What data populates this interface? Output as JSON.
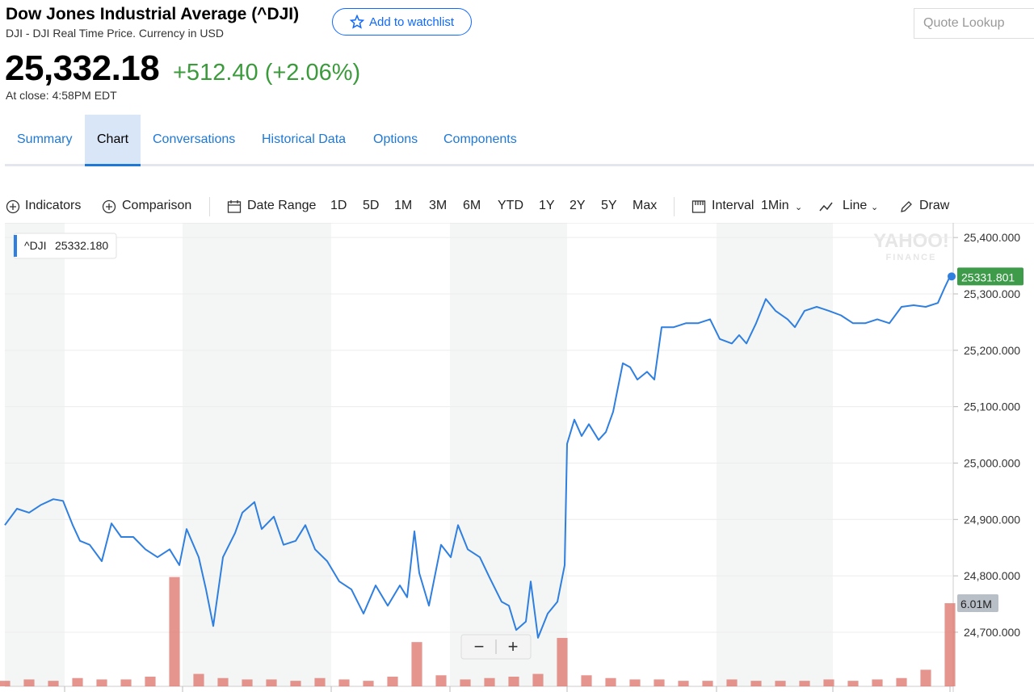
{
  "header": {
    "title": "Dow Jones Industrial Average (^DJI)",
    "subtitle": "DJI - DJI Real Time Price. Currency in USD",
    "watchlist_button": "Add to watchlist",
    "search_placeholder": "Quote Lookup",
    "price": "25,332.18",
    "change": "+512.40 (+2.06%)",
    "close_time": "At close: 4:58PM EDT"
  },
  "tabs": [
    "Summary",
    "Chart",
    "Conversations",
    "Historical Data",
    "Options",
    "Components"
  ],
  "active_tab": "Chart",
  "toolbar": {
    "indicators": "Indicators",
    "comparison": "Comparison",
    "date_range": "Date Range",
    "ranges": [
      "1D",
      "5D",
      "1M",
      "3M",
      "6M",
      "YTD",
      "1Y",
      "2Y",
      "5Y",
      "Max"
    ],
    "interval": "Interval",
    "interval_value": "1Min",
    "chart_type": "Line",
    "draw": "Draw"
  },
  "chart_data": {
    "type": "line",
    "watermark": "YAHOO!",
    "watermark_sub": "FINANCE",
    "tooltip_symbol": "^DJI",
    "tooltip_value": "25332.180",
    "end_label": "25331.801",
    "xlim": [
      0,
      390
    ],
    "ylim": [
      24604,
      25426
    ],
    "yticks": [
      {
        "value": 24700,
        "label": "24,700.000"
      },
      {
        "value": 24800,
        "label": "24,800.000"
      },
      {
        "value": 24900,
        "label": "24,900.000"
      },
      {
        "value": 25000,
        "label": "25,000.000"
      },
      {
        "value": 25100,
        "label": "25,100.000"
      },
      {
        "value": 25200,
        "label": "25,200.000"
      },
      {
        "value": 25300,
        "label": "25,300.000"
      },
      {
        "value": 25400,
        "label": "25,400.000"
      }
    ],
    "grid": true,
    "x": [
      0,
      5,
      10,
      15,
      20,
      24,
      28,
      31,
      35,
      40,
      44,
      48,
      53,
      58,
      63,
      68,
      72,
      75,
      80,
      83,
      86,
      90,
      95,
      98,
      103,
      106,
      111,
      115,
      120,
      124,
      128,
      133,
      138,
      143,
      148,
      153,
      158,
      163,
      166,
      169,
      171,
      175,
      180,
      184,
      187,
      191,
      196,
      200,
      205,
      208,
      211,
      215,
      217,
      220,
      224,
      228,
      231,
      232,
      235,
      238,
      241,
      245,
      248,
      251,
      255,
      258,
      261,
      265,
      268,
      271,
      276,
      281,
      286,
      291,
      295,
      300,
      303,
      306,
      310,
      314,
      318,
      323,
      326,
      330,
      335,
      340,
      345,
      350,
      355,
      360,
      365,
      370,
      375,
      380,
      385,
      388,
      390
    ],
    "series": [
      {
        "name": "^DJI",
        "color": "#2f7fe0",
        "values": [
          24890,
          24919,
          24912,
          24926,
          24936,
          24933,
          24890,
          24862,
          24855,
          24826,
          24893,
          24869,
          24869,
          24847,
          24833,
          24847,
          24819,
          24883,
          24833,
          24776,
          24711,
          24833,
          24876,
          24912,
          24931,
          24883,
          24905,
          24855,
          24862,
          24890,
          24847,
          24826,
          24790,
          24776,
          24733,
          24783,
          24747,
          24783,
          24762,
          24879,
          24805,
          24747,
          24855,
          24833,
          24890,
          24847,
          24833,
          24797,
          24754,
          24747,
          24704,
          24719,
          24790,
          24690,
          24733,
          24754,
          24819,
          25034,
          25077,
          25048,
          25069,
          25041,
          25055,
          25091,
          25177,
          25170,
          25148,
          25162,
          25148,
          25241,
          25241,
          25248,
          25248,
          25255,
          25220,
          25212,
          25227,
          25212,
          25248,
          25291,
          25270,
          25255,
          25241,
          25270,
          25277,
          25270,
          25262,
          25248,
          25248,
          25255,
          25248,
          25277,
          25280,
          25277,
          25284,
          25313,
          25331
        ]
      }
    ],
    "volume": {
      "color": "#e07a72",
      "ylim": [
        0,
        33.5
      ],
      "x": [
        0,
        10,
        20,
        30,
        40,
        50,
        60,
        70,
        80,
        90,
        100,
        110,
        120,
        130,
        140,
        150,
        160,
        170,
        180,
        190,
        200,
        210,
        220,
        230,
        240,
        250,
        260,
        270,
        280,
        290,
        300,
        310,
        320,
        330,
        340,
        350,
        360,
        370,
        380,
        390
      ],
      "values": [
        0.4,
        0.5,
        0.4,
        0.6,
        0.5,
        0.5,
        0.7,
        7.9,
        0.9,
        0.6,
        0.5,
        0.5,
        0.4,
        0.6,
        0.5,
        0.4,
        0.7,
        3.2,
        0.8,
        0.5,
        0.6,
        0.7,
        0.9,
        3.5,
        0.8,
        0.6,
        0.5,
        0.5,
        0.4,
        0.4,
        0.5,
        0.4,
        0.4,
        0.4,
        0.5,
        0.4,
        0.5,
        0.6,
        1.2,
        6.01
      ],
      "value_labels": {
        "39": "6.01M"
      }
    },
    "zoom_controls": [
      "−",
      "+"
    ]
  }
}
